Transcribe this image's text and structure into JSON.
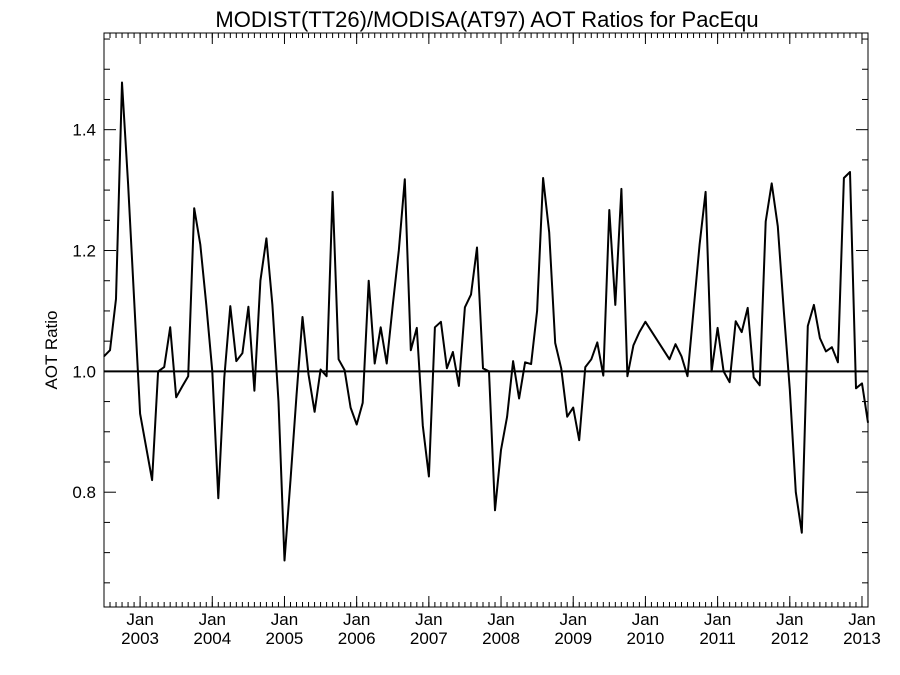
{
  "chart_data": {
    "type": "line",
    "title": "MODIST(TT26)/MODISA(AT97)  AOT Ratios for PacEqu",
    "xlabel": "",
    "ylabel": "AOT Ratio",
    "xlim": [
      "2002-07",
      "2013-02"
    ],
    "ylim": [
      0.61,
      1.56
    ],
    "yticks": [
      {
        "value": 0.8,
        "label": "0.8"
      },
      {
        "value": 1.0,
        "label": "1.0"
      },
      {
        "value": 1.2,
        "label": "1.2"
      },
      {
        "value": 1.4,
        "label": "1.4"
      }
    ],
    "xticks": [
      {
        "date": "2003-01",
        "month": "Jan",
        "year": "2003"
      },
      {
        "date": "2004-01",
        "month": "Jan",
        "year": "2004"
      },
      {
        "date": "2005-01",
        "month": "Jan",
        "year": "2005"
      },
      {
        "date": "2006-01",
        "month": "Jan",
        "year": "2006"
      },
      {
        "date": "2007-01",
        "month": "Jan",
        "year": "2007"
      },
      {
        "date": "2008-01",
        "month": "Jan",
        "year": "2008"
      },
      {
        "date": "2009-01",
        "month": "Jan",
        "year": "2009"
      },
      {
        "date": "2010-01",
        "month": "Jan",
        "year": "2010"
      },
      {
        "date": "2011-01",
        "month": "Jan",
        "year": "2011"
      },
      {
        "date": "2012-01",
        "month": "Jan",
        "year": "2012"
      },
      {
        "date": "2013-01",
        "month": "Jan",
        "year": "2013"
      }
    ],
    "reference_line": 1.0,
    "grid": false,
    "series": [
      {
        "x": [
          "2002-07",
          "2002-08",
          "2002-09",
          "2002-10",
          "2002-11",
          "2002-12",
          "2003-01",
          "2003-03",
          "2003-04",
          "2003-05",
          "2003-06",
          "2003-07",
          "2003-08",
          "2003-09",
          "2003-10",
          "2003-11",
          "2003-12",
          "2004-01",
          "2004-02",
          "2004-03",
          "2004-04",
          "2004-05",
          "2004-06",
          "2004-07",
          "2004-08",
          "2004-09",
          "2004-10",
          "2004-11",
          "2004-12",
          "2005-01",
          "2005-02",
          "2005-03",
          "2005-04",
          "2005-05",
          "2005-06",
          "2005-07",
          "2005-08",
          "2005-09",
          "2005-10",
          "2005-11",
          "2005-12",
          "2006-01",
          "2006-02",
          "2006-03",
          "2006-04",
          "2006-05",
          "2006-06",
          "2006-07",
          "2006-08",
          "2006-09",
          "2006-10",
          "2006-11",
          "2006-12",
          "2007-01",
          "2007-02",
          "2007-03",
          "2007-04",
          "2007-05",
          "2007-06",
          "2007-07",
          "2007-08",
          "2007-09",
          "2007-10",
          "2007-11",
          "2007-12",
          "2008-01",
          "2008-02",
          "2008-03",
          "2008-04",
          "2008-05",
          "2008-06",
          "2008-07",
          "2008-08",
          "2008-09",
          "2008-10",
          "2008-11",
          "2008-12",
          "2009-01",
          "2009-02",
          "2009-03",
          "2009-04",
          "2009-05",
          "2009-06",
          "2009-07",
          "2009-08",
          "2009-09",
          "2009-10",
          "2009-11",
          "2009-12",
          "2010-01",
          "2010-05",
          "2010-06",
          "2010-07",
          "2010-08",
          "2010-09",
          "2010-10",
          "2010-11",
          "2010-12",
          "2011-01",
          "2011-02",
          "2011-03",
          "2011-04",
          "2011-05",
          "2011-06",
          "2011-07",
          "2011-08",
          "2011-09",
          "2011-10",
          "2011-11",
          "2011-12",
          "2012-01",
          "2012-02",
          "2012-03",
          "2012-04",
          "2012-05",
          "2012-06",
          "2012-07",
          "2012-08",
          "2012-09",
          "2012-10",
          "2012-11",
          "2012-12",
          "2013-01",
          "2013-02"
        ],
        "y": [
          1.025,
          1.035,
          1.12,
          1.478,
          1.31,
          1.12,
          0.93,
          0.82,
          1.0,
          1.007,
          1.073,
          0.957,
          0.975,
          0.992,
          1.27,
          1.21,
          1.11,
          1.0,
          0.79,
          0.99,
          1.108,
          1.017,
          1.03,
          1.107,
          0.968,
          1.15,
          1.22,
          1.11,
          0.95,
          0.687,
          0.82,
          0.96,
          1.09,
          0.995,
          0.933,
          1.003,
          0.992,
          1.297,
          1.02,
          1.002,
          0.94,
          0.912,
          0.948,
          1.15,
          1.013,
          1.073,
          1.013,
          1.11,
          1.2,
          1.318,
          1.035,
          1.072,
          0.91,
          0.826,
          1.073,
          1.082,
          1.005,
          1.032,
          0.976,
          1.106,
          1.127,
          1.205,
          1.005,
          1.0,
          0.77,
          0.87,
          0.925,
          1.017,
          0.955,
          1.015,
          1.012,
          1.1,
          1.32,
          1.23,
          1.047,
          1.005,
          0.925,
          0.94,
          0.886,
          1.007,
          1.02,
          1.048,
          0.993,
          1.267,
          1.11,
          1.302,
          0.992,
          1.043,
          1.065,
          1.082,
          1.02,
          1.045,
          1.025,
          0.992,
          1.1,
          1.21,
          1.297,
          1.0,
          1.072,
          1.0,
          0.982,
          1.083,
          1.065,
          1.105,
          0.99,
          0.977,
          1.248,
          1.311,
          1.24,
          1.1,
          0.97,
          0.8,
          0.733,
          1.075,
          1.11,
          1.055,
          1.033,
          1.04,
          1.015,
          1.32,
          1.33,
          0.972,
          0.98,
          0.915
        ]
      }
    ]
  }
}
